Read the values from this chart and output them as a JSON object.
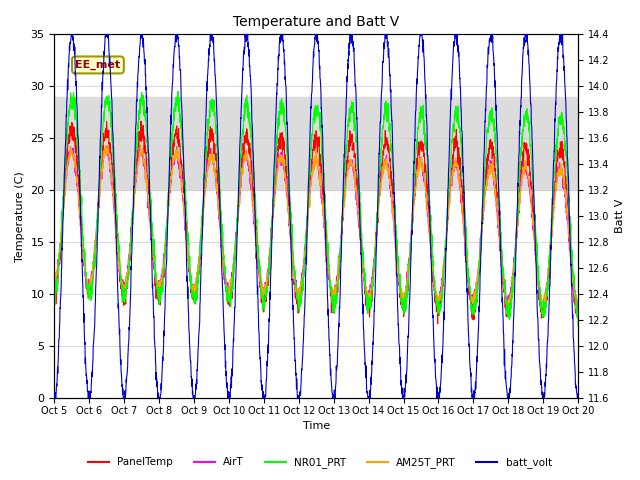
{
  "title": "Temperature and Batt V",
  "xlabel": "Time",
  "ylabel_left": "Temperature (C)",
  "ylabel_right": "Batt V",
  "ylim_left": [
    0,
    35
  ],
  "ylim_right": [
    11.6,
    14.4
  ],
  "shaded_band": [
    20,
    29
  ],
  "shaded_color": "#dcdcdc",
  "label_box_text": "EE_met",
  "x_tick_labels": [
    "Oct 5",
    "Oct 6",
    "Oct 7",
    "Oct 8",
    "Oct 9",
    "Oct 10",
    "Oct 11",
    "Oct 12",
    "Oct 13",
    "Oct 14",
    "Oct 15",
    "Oct 16",
    "Oct 17",
    "Oct 18",
    "Oct 19",
    "Oct 20"
  ],
  "series_PanelTemp_color": "#ff0000",
  "series_AirT_color": "#ff00ff",
  "series_NR01_PRT_color": "#00ff00",
  "series_AM25T_PRT_color": "#ffa500",
  "series_batt_volt_color": "#0000cc",
  "legend_entries": [
    "PanelTemp",
    "AirT",
    "NR01_PRT",
    "AM25T_PRT",
    "batt_volt"
  ],
  "legend_colors": [
    "#ff0000",
    "#ff00ff",
    "#00ff00",
    "#ffa500",
    "#0000cc"
  ],
  "background_color": "#ffffff",
  "lw": 0.8,
  "n_days": 15,
  "pts_per_day": 144
}
